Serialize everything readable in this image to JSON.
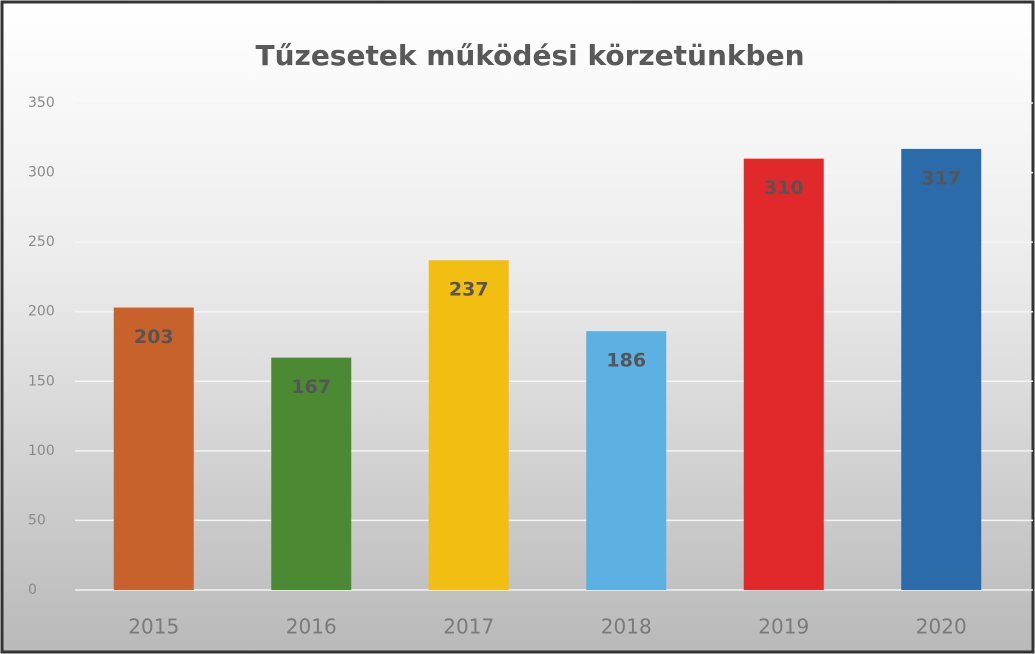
{
  "chart_data": {
    "type": "bar",
    "title": "Tűzesetek működési körzetünkben",
    "categories": [
      "2015",
      "2016",
      "2017",
      "2018",
      "2019",
      "2020"
    ],
    "values": [
      203,
      167,
      237,
      186,
      310,
      317
    ],
    "colors": [
      "#c8622c",
      "#4b8a33",
      "#f3be12",
      "#5cb0e2",
      "#e1292b",
      "#2b6ba9"
    ],
    "ylim": [
      0,
      350
    ],
    "yticks": [
      0,
      50,
      100,
      150,
      200,
      250,
      300,
      350
    ],
    "grid": true
  }
}
